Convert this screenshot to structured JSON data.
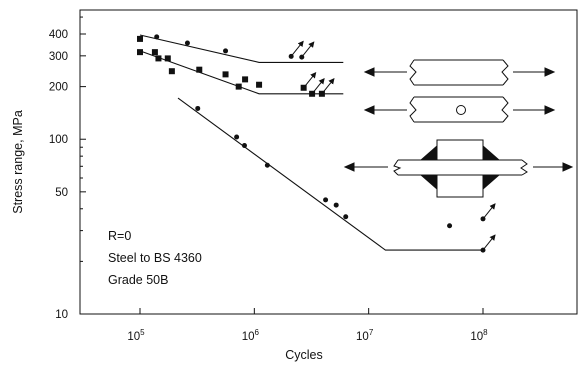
{
  "chart_data": {
    "type": "scatter",
    "xlabel": "Cycles",
    "ylabel": "Stress range, MPa",
    "x_scale": "log",
    "y_scale": "log",
    "xlim": [
      20000,
      1000000000
    ],
    "ylim": [
      10,
      500
    ],
    "x_ticks": [
      {
        "value": 100000,
        "base": "10",
        "exp": "5"
      },
      {
        "value": 1000000,
        "base": "10",
        "exp": "6"
      },
      {
        "value": 10000000,
        "base": "10",
        "exp": "7"
      },
      {
        "value": 100000000,
        "base": "10",
        "exp": "8"
      }
    ],
    "y_ticks": [
      {
        "value": 400,
        "label": "400"
      },
      {
        "value": 300,
        "label": "300"
      },
      {
        "value": 200,
        "label": "200"
      },
      {
        "value": 100,
        "label": "100"
      },
      {
        "value": 50,
        "label": "50"
      },
      {
        "value": 10,
        "label": "10"
      }
    ],
    "annotations": [
      "R=0",
      "Steel to BS 4360",
      "Grade 50B"
    ],
    "series": [
      {
        "marker": "circle",
        "points": [
          [
            100000,
            375
          ],
          [
            140000,
            385
          ],
          [
            260000,
            355
          ],
          [
            560000,
            320
          ],
          [
            2100000,
            298
          ],
          [
            2600000,
            295
          ]
        ],
        "runouts": [
          [
            2100000,
            298
          ],
          [
            2600000,
            295
          ]
        ],
        "fit_line": [
          [
            100000,
            395
          ],
          [
            1100000,
            275
          ],
          [
            6000000,
            275
          ]
        ]
      },
      {
        "marker": "square",
        "points": [
          [
            100000,
            375
          ],
          [
            100000,
            315
          ],
          [
            135000,
            315
          ],
          [
            145000,
            290
          ],
          [
            175000,
            290
          ],
          [
            190000,
            245
          ],
          [
            330000,
            250
          ],
          [
            560000,
            235
          ],
          [
            730000,
            200
          ],
          [
            830000,
            220
          ],
          [
            1100000,
            205
          ],
          [
            2700000,
            197
          ],
          [
            3200000,
            182
          ],
          [
            3900000,
            182
          ]
        ],
        "runouts": [
          [
            2700000,
            197
          ],
          [
            3200000,
            182
          ],
          [
            3900000,
            182
          ]
        ],
        "fit_line": [
          [
            100000,
            320
          ],
          [
            1100000,
            182
          ],
          [
            6000000,
            182
          ]
        ]
      },
      {
        "marker": "circle",
        "points": [
          [
            320000,
            150
          ],
          [
            700000,
            103
          ],
          [
            820000,
            92
          ],
          [
            1300000,
            71
          ],
          [
            4200000,
            45
          ],
          [
            5200000,
            42
          ],
          [
            6300000,
            36
          ],
          [
            51000000,
            32
          ],
          [
            100000000,
            35
          ],
          [
            100000000,
            23.2
          ]
        ],
        "runouts": [
          [
            100000000,
            35
          ],
          [
            100000000,
            23.2
          ]
        ],
        "fit_line": [
          [
            215000,
            172
          ],
          [
            14000000,
            23.2
          ],
          [
            100000000,
            23.2
          ]
        ]
      }
    ]
  }
}
